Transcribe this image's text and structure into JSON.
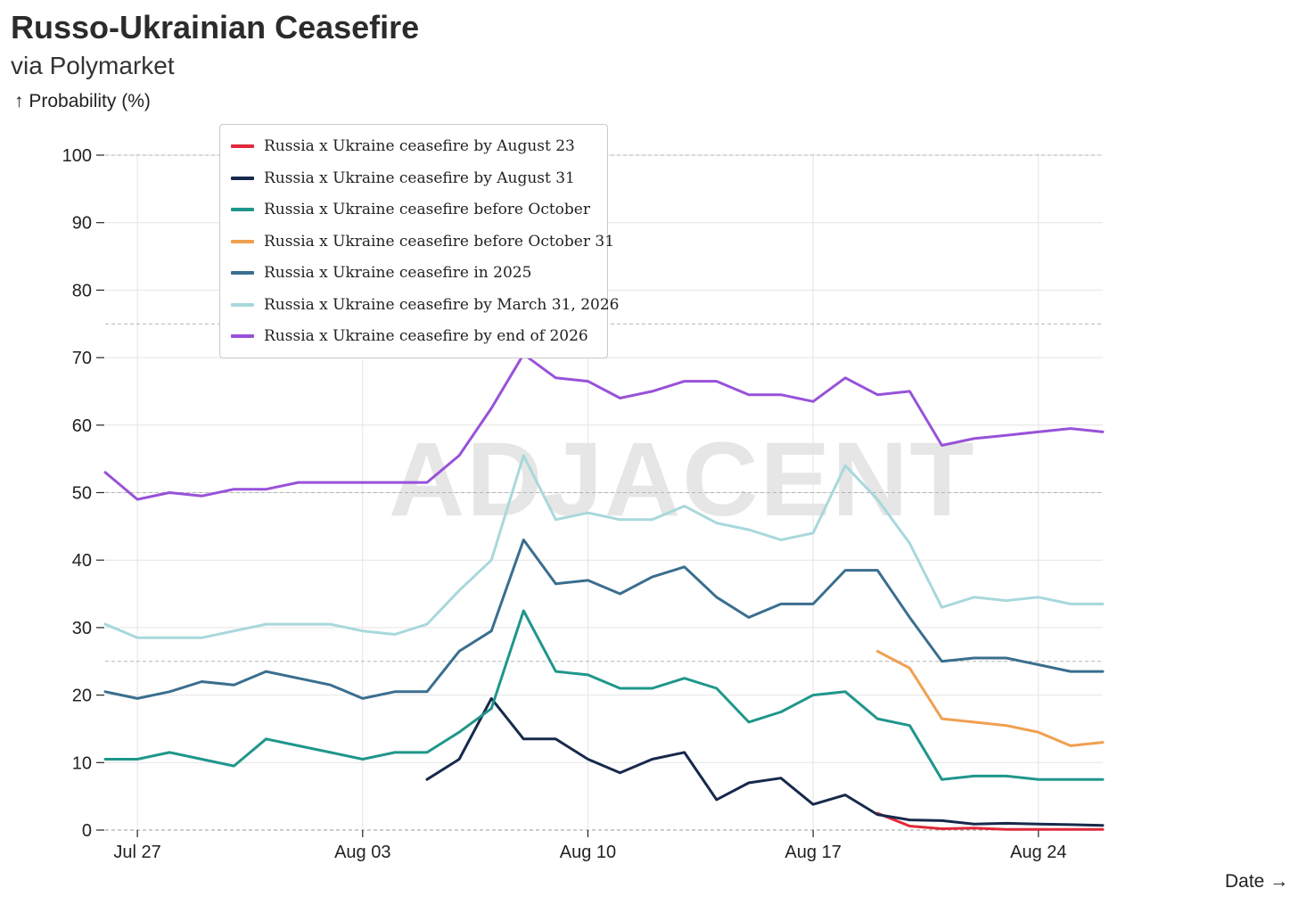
{
  "header": {
    "title": "Russo-Ukrainian Ceasefire",
    "subtitle": "via Polymarket",
    "y_axis_label": "↑ Probability (%)",
    "x_axis_label": "Date →"
  },
  "watermark": "ADJACENT",
  "chart_data": {
    "type": "line",
    "title": "Russo-Ukrainian Ceasefire",
    "subtitle": "via Polymarket",
    "xlabel": "Date",
    "ylabel": "Probability (%)",
    "ylim": [
      0,
      100
    ],
    "yticks": [
      0,
      10,
      20,
      30,
      40,
      50,
      60,
      70,
      80,
      90,
      100
    ],
    "xlim": [
      "2025-07-26",
      "2025-08-26"
    ],
    "xticks": [
      {
        "date": "2025-07-27",
        "label": "Jul 27"
      },
      {
        "date": "2025-08-03",
        "label": "Aug 03"
      },
      {
        "date": "2025-08-10",
        "label": "Aug 10"
      },
      {
        "date": "2025-08-17",
        "label": "Aug 17"
      },
      {
        "date": "2025-08-24",
        "label": "Aug 24"
      }
    ],
    "reference_lines": [
      25,
      50,
      75,
      100
    ],
    "grid": true,
    "legend_position": "top-left",
    "series": [
      {
        "name": "Russia x Ukraine ceasefire by August 23",
        "color": "#e0293a",
        "x": [
          "2025-08-19",
          "2025-08-20",
          "2025-08-21",
          "2025-08-22",
          "2025-08-23",
          "2025-08-24",
          "2025-08-25",
          "2025-08-26"
        ],
        "y": [
          2.5,
          0.6,
          0.2,
          0.3,
          0.1,
          0.1,
          0.1,
          0.1
        ]
      },
      {
        "name": "Russia x Ukraine ceasefire by August 31",
        "color": "#17294b",
        "x": [
          "2025-08-05",
          "2025-08-06",
          "2025-08-07",
          "2025-08-08",
          "2025-08-09",
          "2025-08-10",
          "2025-08-11",
          "2025-08-12",
          "2025-08-13",
          "2025-08-14",
          "2025-08-15",
          "2025-08-16",
          "2025-08-17",
          "2025-08-18",
          "2025-08-19",
          "2025-08-20",
          "2025-08-21",
          "2025-08-22",
          "2025-08-23",
          "2025-08-24",
          "2025-08-25",
          "2025-08-26"
        ],
        "y": [
          7.5,
          10.5,
          19.5,
          13.5,
          13.5,
          10.5,
          8.5,
          10.5,
          11.5,
          4.5,
          7,
          7.7,
          3.8,
          5.2,
          2.3,
          1.5,
          1.4,
          0.9,
          1,
          0.9,
          0.8,
          0.7
        ]
      },
      {
        "name": "Russia x Ukraine ceasefire before October",
        "color": "#1f968b",
        "x": [
          "2025-07-26",
          "2025-07-27",
          "2025-07-28",
          "2025-07-29",
          "2025-07-30",
          "2025-07-31",
          "2025-08-01",
          "2025-08-02",
          "2025-08-03",
          "2025-08-04",
          "2025-08-05",
          "2025-08-06",
          "2025-08-07",
          "2025-08-08",
          "2025-08-09",
          "2025-08-10",
          "2025-08-11",
          "2025-08-12",
          "2025-08-13",
          "2025-08-14",
          "2025-08-15",
          "2025-08-16",
          "2025-08-17",
          "2025-08-18",
          "2025-08-19",
          "2025-08-20",
          "2025-08-21",
          "2025-08-22",
          "2025-08-23",
          "2025-08-24",
          "2025-08-25",
          "2025-08-26"
        ],
        "y": [
          10.5,
          10.5,
          11.5,
          10.5,
          9.5,
          13.5,
          12.5,
          11.5,
          10.5,
          11.5,
          11.5,
          14.5,
          18,
          32.5,
          23.5,
          23,
          21,
          21,
          22.5,
          21,
          16,
          17.5,
          20,
          20.5,
          16.5,
          15.5,
          7.5,
          8,
          8,
          7.5,
          7.5,
          7.5
        ]
      },
      {
        "name": "Russia x Ukraine ceasefire before October 31",
        "color": "#f0a050",
        "x": [
          "2025-08-19",
          "2025-08-20",
          "2025-08-21",
          "2025-08-22",
          "2025-08-23",
          "2025-08-24",
          "2025-08-25",
          "2025-08-26"
        ],
        "y": [
          26.5,
          24,
          16.5,
          16,
          15.5,
          14.5,
          12.5,
          13
        ]
      },
      {
        "name": "Russia x Ukraine ceasefire in 2025",
        "color": "#3a6e8f",
        "x": [
          "2025-07-26",
          "2025-07-27",
          "2025-07-28",
          "2025-07-29",
          "2025-07-30",
          "2025-07-31",
          "2025-08-01",
          "2025-08-02",
          "2025-08-03",
          "2025-08-04",
          "2025-08-05",
          "2025-08-06",
          "2025-08-07",
          "2025-08-08",
          "2025-08-09",
          "2025-08-10",
          "2025-08-11",
          "2025-08-12",
          "2025-08-13",
          "2025-08-14",
          "2025-08-15",
          "2025-08-16",
          "2025-08-17",
          "2025-08-18",
          "2025-08-19",
          "2025-08-20",
          "2025-08-21",
          "2025-08-22",
          "2025-08-23",
          "2025-08-24",
          "2025-08-25",
          "2025-08-26"
        ],
        "y": [
          20.5,
          19.5,
          20.5,
          22,
          21.5,
          23.5,
          22.5,
          21.5,
          19.5,
          20.5,
          20.5,
          26.5,
          29.5,
          43,
          36.5,
          37,
          35,
          37.5,
          39,
          34.5,
          31.5,
          33.5,
          33.5,
          38.5,
          38.5,
          31.5,
          25,
          25.5,
          25.5,
          24.5,
          23.5,
          23.5
        ]
      },
      {
        "name": "Russia x Ukraine ceasefire by March 31, 2026",
        "color": "#a8d8dc",
        "x": [
          "2025-07-26",
          "2025-07-27",
          "2025-07-28",
          "2025-07-29",
          "2025-07-30",
          "2025-07-31",
          "2025-08-01",
          "2025-08-02",
          "2025-08-03",
          "2025-08-04",
          "2025-08-05",
          "2025-08-06",
          "2025-08-07",
          "2025-08-08",
          "2025-08-09",
          "2025-08-10",
          "2025-08-11",
          "2025-08-12",
          "2025-08-13",
          "2025-08-14",
          "2025-08-15",
          "2025-08-16",
          "2025-08-17",
          "2025-08-18",
          "2025-08-19",
          "2025-08-20",
          "2025-08-21",
          "2025-08-22",
          "2025-08-23",
          "2025-08-24",
          "2025-08-25",
          "2025-08-26"
        ],
        "y": [
          30.5,
          28.5,
          28.5,
          28.5,
          29.5,
          30.5,
          30.5,
          30.5,
          29.5,
          29,
          30.5,
          35.5,
          40,
          55.5,
          46,
          47,
          46,
          46,
          48,
          45.5,
          44.5,
          43,
          44,
          54,
          49,
          42.5,
          33,
          34.5,
          34,
          34.5,
          33.5,
          33.5
        ]
      },
      {
        "name": "Russia x Ukraine ceasefire by end of 2026",
        "color": "#9852d9",
        "x": [
          "2025-07-26",
          "2025-07-27",
          "2025-07-28",
          "2025-07-29",
          "2025-07-30",
          "2025-07-31",
          "2025-08-01",
          "2025-08-02",
          "2025-08-03",
          "2025-08-04",
          "2025-08-05",
          "2025-08-06",
          "2025-08-07",
          "2025-08-08",
          "2025-08-09",
          "2025-08-10",
          "2025-08-11",
          "2025-08-12",
          "2025-08-13",
          "2025-08-14",
          "2025-08-15",
          "2025-08-16",
          "2025-08-17",
          "2025-08-18",
          "2025-08-19",
          "2025-08-20",
          "2025-08-21",
          "2025-08-22",
          "2025-08-23",
          "2025-08-24",
          "2025-08-25",
          "2025-08-26"
        ],
        "y": [
          53,
          49,
          50,
          49.5,
          50.5,
          50.5,
          51.5,
          51.5,
          51.5,
          51.5,
          51.5,
          55.5,
          62.5,
          70.5,
          67,
          66.5,
          64,
          65,
          66.5,
          66.5,
          64.5,
          64.5,
          63.5,
          67,
          64.5,
          65,
          57,
          58,
          58.5,
          59,
          59.5,
          59
        ]
      }
    ]
  }
}
